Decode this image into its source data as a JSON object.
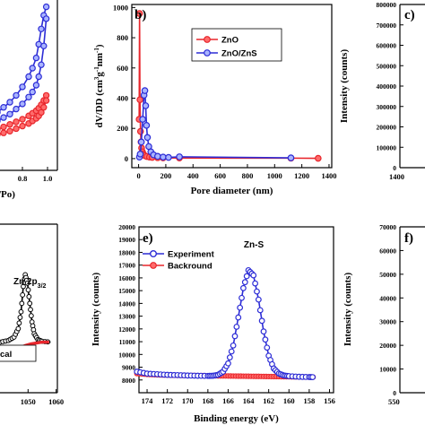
{
  "colors": {
    "red": "#e8262c",
    "blue": "#2d2dd6",
    "red_fill": "#ff6b6b",
    "blue_fill": "#a9b4ff",
    "black": "#000000"
  },
  "chart_data": [
    {
      "panel": "a",
      "type": "line",
      "xlabel_fragment": "/Po)",
      "xticks": [
        "0.8",
        "1.0"
      ],
      "xlim": [
        0.55,
        1.05
      ],
      "ylim": [
        0,
        10
      ],
      "series": [
        {
          "color": "#2d2dd6",
          "x": [
            0.56,
            0.6,
            0.65,
            0.7,
            0.75,
            0.8,
            0.85,
            0.88,
            0.91,
            0.93,
            0.95,
            0.97,
            0.99
          ],
          "y": [
            3.2,
            3.4,
            3.7,
            4.0,
            4.4,
            4.9,
            5.5,
            6.0,
            6.6,
            7.4,
            8.3,
            9.1,
            9.6
          ]
        },
        {
          "color": "#2d2dd6",
          "x": [
            0.56,
            0.6,
            0.65,
            0.7,
            0.75,
            0.8,
            0.85,
            0.88,
            0.91,
            0.93,
            0.95,
            0.97,
            0.99
          ],
          "y": [
            2.7,
            2.9,
            3.1,
            3.3,
            3.6,
            3.9,
            4.3,
            4.6,
            5.0,
            5.5,
            6.2,
            7.3,
            8.9
          ]
        },
        {
          "color": "#e8262c",
          "x": [
            0.56,
            0.6,
            0.65,
            0.7,
            0.75,
            0.8,
            0.85,
            0.88,
            0.91,
            0.93,
            0.95,
            0.97,
            0.99
          ],
          "y": [
            2.3,
            2.4,
            2.55,
            2.7,
            2.85,
            3.0,
            3.2,
            3.35,
            3.5,
            3.65,
            3.85,
            4.1,
            4.4
          ]
        },
        {
          "color": "#e8262c",
          "x": [
            0.56,
            0.6,
            0.65,
            0.7,
            0.75,
            0.8,
            0.85,
            0.88,
            0.91,
            0.93,
            0.95,
            0.97,
            0.99
          ],
          "y": [
            2.0,
            2.1,
            2.2,
            2.3,
            2.45,
            2.6,
            2.75,
            2.9,
            3.05,
            3.2,
            3.4,
            3.7,
            4.1
          ]
        }
      ]
    },
    {
      "panel": "b",
      "letter": "b)",
      "type": "line",
      "xlabel": "Pore diameter (nm)",
      "ylabel_parts": [
        "dV/DD (cm",
        "3",
        "g",
        "-1",
        "nm",
        "-1",
        ")"
      ],
      "xlim": [
        -50,
        1420
      ],
      "ylim": [
        -60,
        1020
      ],
      "xticks": [
        0,
        200,
        400,
        600,
        800,
        1000,
        1200,
        1400
      ],
      "yticks": [
        0,
        200,
        400,
        600,
        800,
        1000
      ],
      "legend": [
        "ZnO",
        "ZnO/ZnS"
      ],
      "series": [
        {
          "name": "ZnO",
          "color": "#e8262c",
          "x": [
            4,
            7,
            10,
            14,
            18,
            22,
            28,
            35,
            45,
            60,
            80,
            100,
            140,
            180,
            300,
            1120,
            1320
          ],
          "y": [
            260,
            960,
            390,
            180,
            110,
            70,
            45,
            30,
            20,
            14,
            10,
            8,
            6,
            5,
            4,
            3,
            2
          ]
        },
        {
          "name": "ZnO/ZnS",
          "color": "#2d2dd6",
          "x": [
            6,
            12,
            20,
            30,
            40,
            46,
            52,
            58,
            65,
            75,
            90,
            110,
            140,
            180,
            220,
            300,
            1120
          ],
          "y": [
            10,
            30,
            110,
            260,
            420,
            450,
            350,
            220,
            140,
            80,
            45,
            25,
            15,
            10,
            8,
            12,
            5
          ]
        }
      ]
    },
    {
      "panel": "c",
      "letter": "c)",
      "type": "line",
      "ylabel": "Intensity (counts)",
      "ylim": [
        0,
        800000
      ],
      "yticks": [
        "0",
        "100000",
        "200000",
        "300000",
        "400000",
        "500000",
        "600000",
        "700000",
        "800000"
      ],
      "xticks": [
        "1400"
      ]
    },
    {
      "panel": "d",
      "type": "line",
      "annotation": "Zn 2p",
      "annotation_sub": "3/2",
      "legend_fragment": "cal",
      "xticks": [
        "1050",
        "1060"
      ],
      "xlim": [
        1040,
        1063
      ],
      "ylim": [
        0,
        10
      ],
      "series": [
        {
          "color": "#000000",
          "x": [
            1040,
            1043,
            1045,
            1046.5,
            1047.5,
            1048.3,
            1049,
            1049.8,
            1050.6,
            1051.4,
            1052.2,
            1053.5,
            1055,
            1058
          ],
          "y": [
            3.0,
            3.1,
            3.3,
            3.8,
            4.8,
            6.3,
            7.0,
            6.5,
            5.3,
            4.2,
            3.5,
            3.15,
            3.05,
            3.0
          ]
        },
        {
          "color": "#e8262c",
          "x": [
            1040,
            1043,
            1045,
            1047,
            1049,
            1051,
            1053,
            1055,
            1056.5,
            1057.5
          ],
          "y": [
            2.2,
            2.35,
            2.5,
            2.65,
            2.8,
            2.9,
            2.95,
            3.0,
            3.0,
            3.0
          ]
        }
      ]
    },
    {
      "panel": "e",
      "letter": "e)",
      "type": "line",
      "xlabel": "Binding energy (eV)",
      "ylabel": "Intensity (counts)",
      "xlim": [
        174.8,
        155.6
      ],
      "ylim": [
        7000,
        20000
      ],
      "xticks": [
        174,
        172,
        170,
        168,
        166,
        164,
        162,
        160,
        158,
        156
      ],
      "yticks": [
        8000,
        9000,
        10000,
        11000,
        12000,
        13000,
        14000,
        15000,
        16000,
        17000,
        18000,
        19000,
        20000
      ],
      "legend": [
        "Experiment",
        "Backround"
      ],
      "annotation": "Zn-S",
      "series": [
        {
          "name": "Experiment",
          "color": "#2d2dd6",
          "x": [
            175,
            174,
            173,
            172,
            171,
            170,
            169,
            168,
            167.5,
            167,
            166.5,
            166,
            165.5,
            165,
            164.5,
            164,
            163.5,
            163,
            162.5,
            162,
            161.5,
            161,
            160.5,
            160,
            159,
            158,
            157.5
          ],
          "y": [
            8650,
            8500,
            8450,
            8400,
            8380,
            8350,
            8330,
            8320,
            8330,
            8400,
            8650,
            9300,
            10700,
            12900,
            15200,
            16600,
            16200,
            14300,
            11800,
            9900,
            8900,
            8500,
            8350,
            8300,
            8250,
            8230,
            8220
          ]
        },
        {
          "name": "Backround",
          "color": "#e8262c",
          "x": [
            175,
            174,
            173,
            172,
            171,
            170,
            169,
            168,
            167,
            166,
            165,
            164,
            163,
            162,
            161,
            160,
            159,
            158,
            157.5
          ],
          "y": [
            8500,
            8440,
            8400,
            8380,
            8360,
            8350,
            8340,
            8330,
            8320,
            8310,
            8300,
            8290,
            8280,
            8270,
            8260,
            8250,
            8240,
            8230,
            8220
          ]
        }
      ]
    },
    {
      "panel": "f",
      "letter": "f)",
      "type": "line",
      "ylabel": "Intensity (counts)",
      "ylim": [
        0,
        70000
      ],
      "yticks": [
        "0",
        "10000",
        "20000",
        "30000",
        "40000",
        "50000",
        "60000",
        "70000"
      ],
      "xticks": [
        "550"
      ]
    }
  ]
}
